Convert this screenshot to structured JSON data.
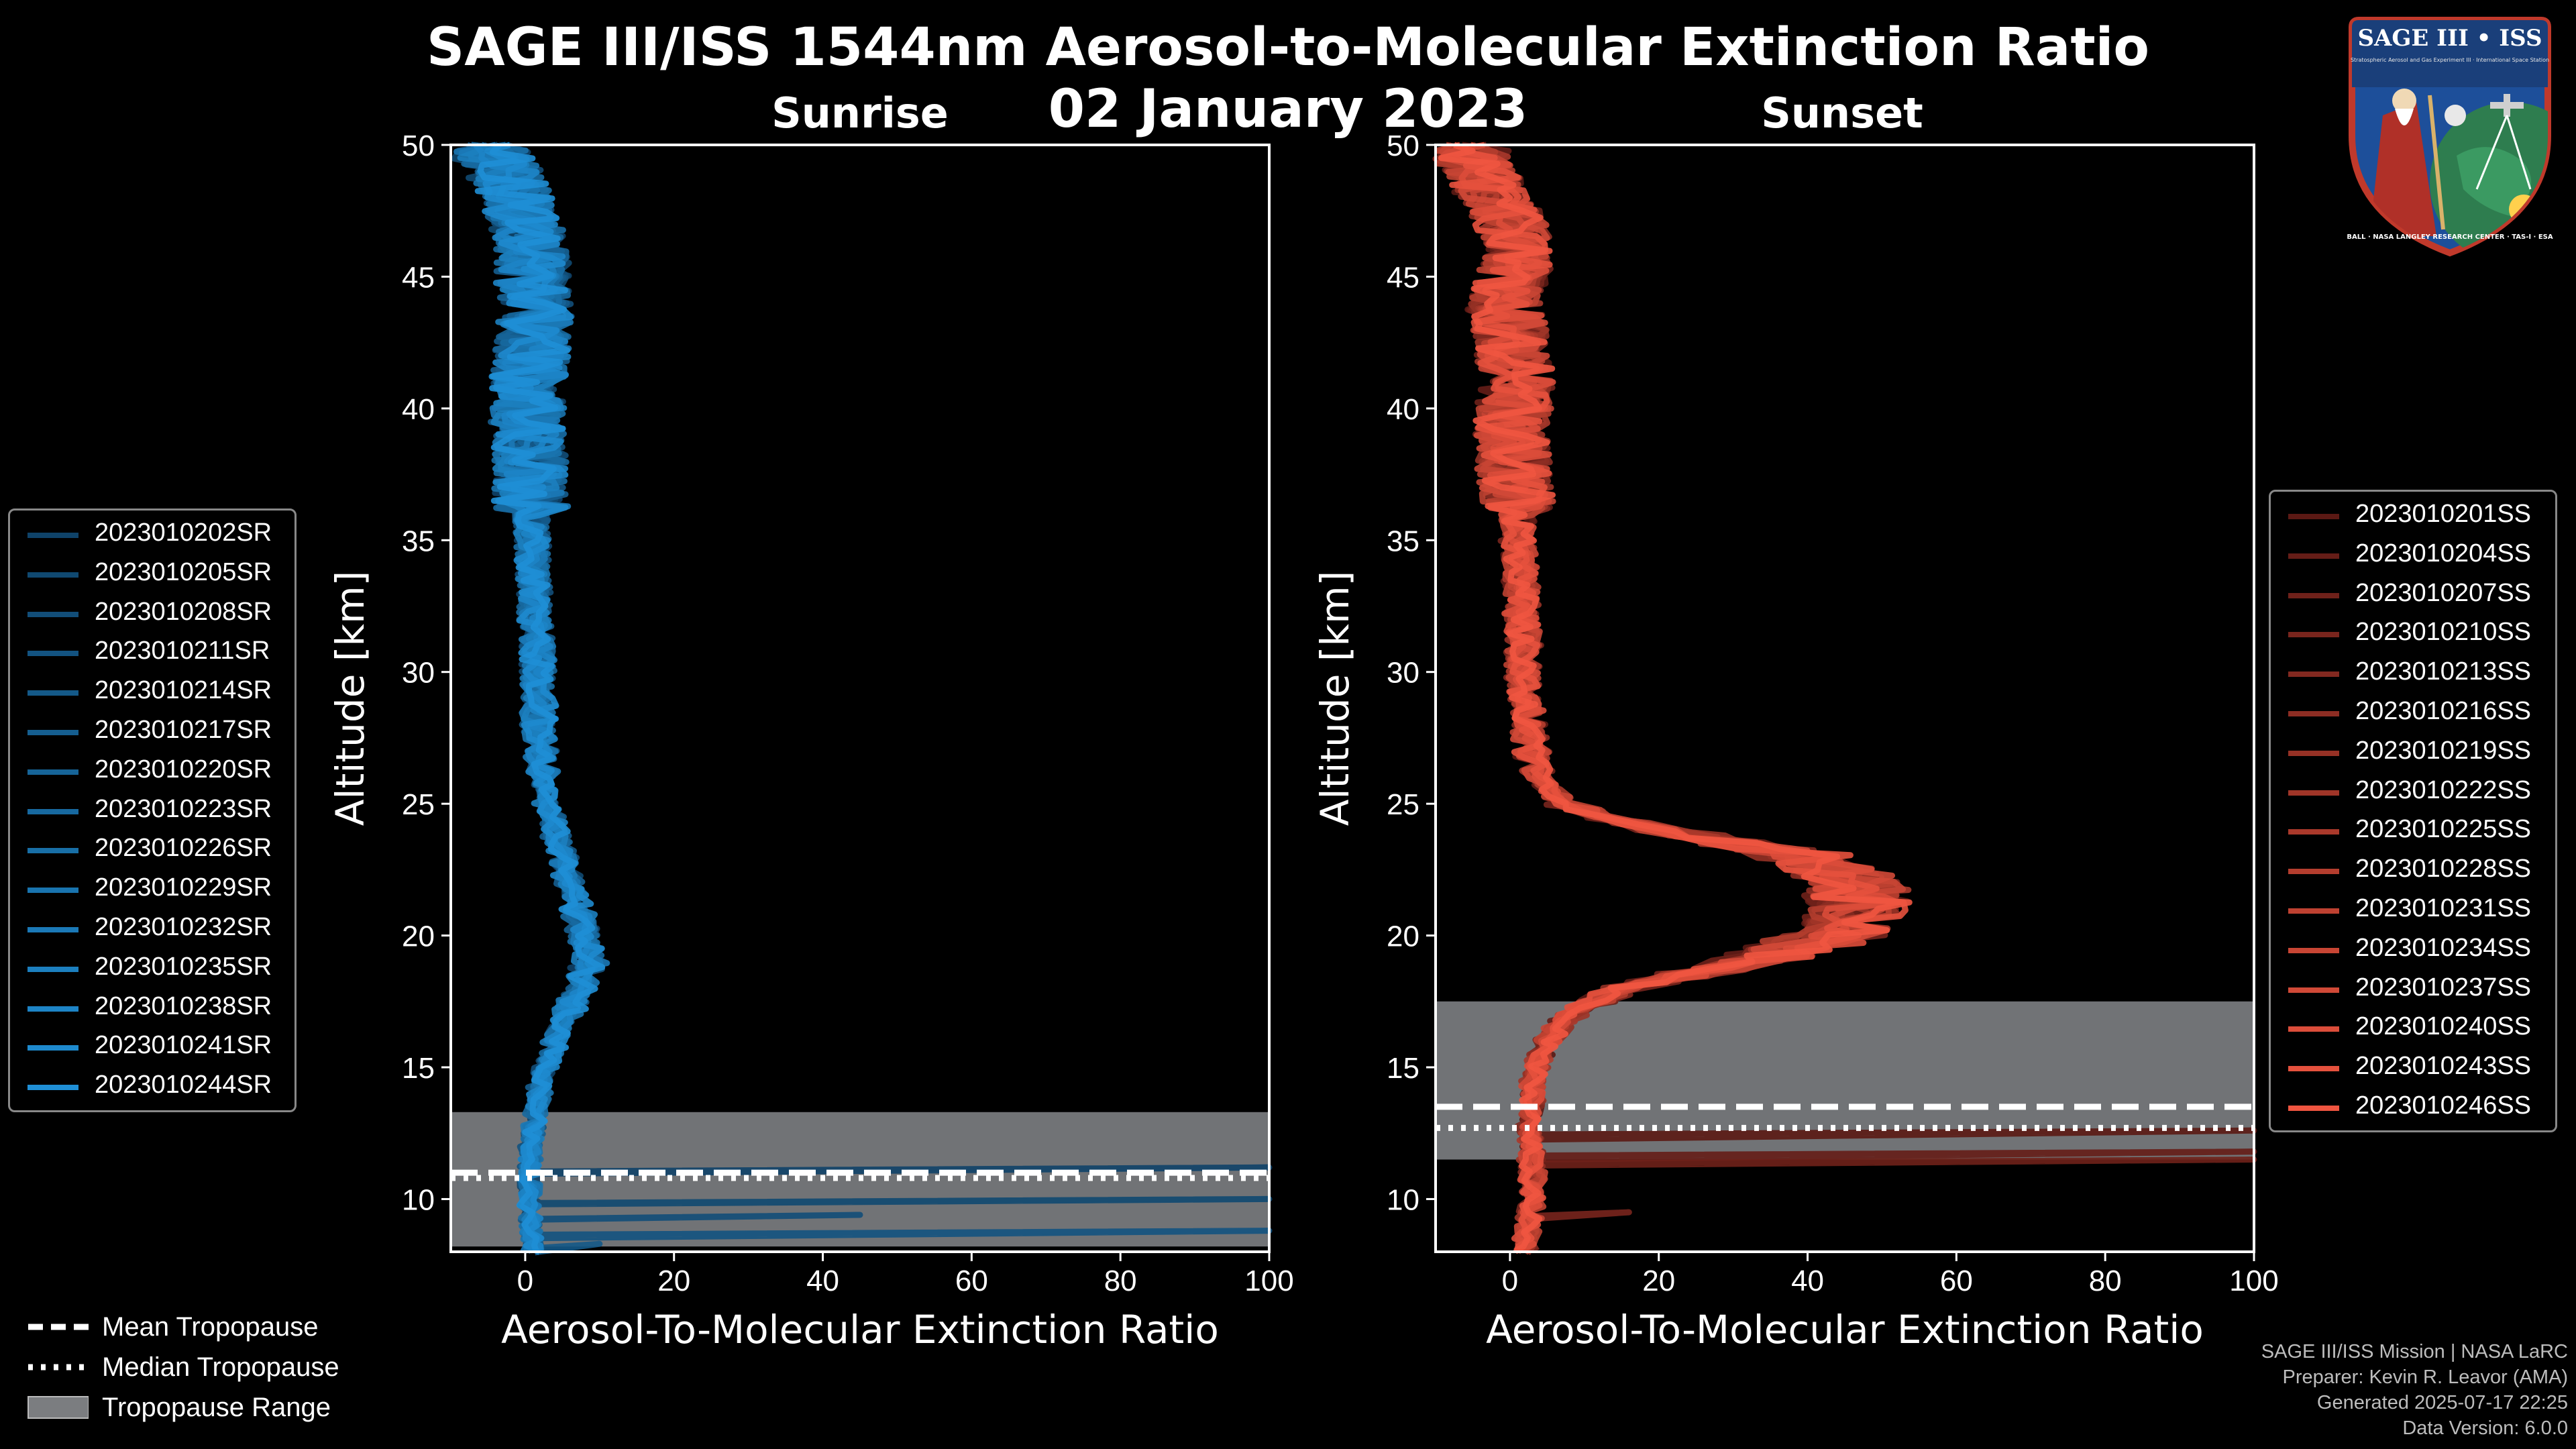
{
  "title": "SAGE III/ISS 1544nm Aerosol-to-Molecular Extinction Ratio",
  "date": "02 January 2023",
  "colors": {
    "sunrise": "#1f8fd6",
    "sunset": "#ef5540",
    "tropopause_band": "#7b7d80",
    "frame": "#ffffff"
  },
  "chart_data": [
    {
      "type": "line",
      "panel": "sunrise",
      "title": "Sunrise",
      "xlabel": "Aerosol-To-Molecular Extinction Ratio",
      "ylabel": "Altitude [km]",
      "xlim": [
        -10,
        100
      ],
      "ylim": [
        8,
        50
      ],
      "xticks": [
        0,
        20,
        40,
        60,
        80,
        100
      ],
      "yticks": [
        10,
        15,
        20,
        25,
        30,
        35,
        40,
        45,
        50
      ],
      "tropopause": {
        "mean": 11.0,
        "median": 10.8,
        "range": [
          8.2,
          13.3
        ]
      },
      "profile": {
        "altitude": [
          8,
          9,
          10,
          11,
          12,
          13,
          14,
          15,
          16,
          17,
          18,
          19,
          20,
          21,
          22,
          23,
          24,
          25,
          26,
          27,
          28,
          29,
          30,
          31,
          32,
          33,
          34,
          35,
          36,
          37,
          38,
          39,
          40,
          41,
          42,
          43,
          44,
          45,
          46,
          47,
          48,
          49,
          50
        ],
        "ratio": [
          1.0,
          0.8,
          0.6,
          0.6,
          0.8,
          1.3,
          1.8,
          2.8,
          4.0,
          5.5,
          7.5,
          8.5,
          8.0,
          7.0,
          6.0,
          5.0,
          4.0,
          3.0,
          2.5,
          2.0,
          1.8,
          1.8,
          1.6,
          1.6,
          1.4,
          1.2,
          1.2,
          1.0,
          0.8,
          0.6,
          0.6,
          0.4,
          0.3,
          0.4,
          0.8,
          1.2,
          1.5,
          1.0,
          0.8,
          0.0,
          -1.0,
          -3.0,
          -5.0
        ]
      },
      "series": [
        {
          "name": "2023010202SR"
        },
        {
          "name": "2023010205SR"
        },
        {
          "name": "2023010208SR"
        },
        {
          "name": "2023010211SR"
        },
        {
          "name": "2023010214SR"
        },
        {
          "name": "2023010217SR"
        },
        {
          "name": "2023010220SR"
        },
        {
          "name": "2023010223SR"
        },
        {
          "name": "2023010226SR"
        },
        {
          "name": "2023010229SR"
        },
        {
          "name": "2023010232SR"
        },
        {
          "name": "2023010235SR"
        },
        {
          "name": "2023010238SR"
        },
        {
          "name": "2023010241SR"
        },
        {
          "name": "2023010244SR"
        }
      ]
    },
    {
      "type": "line",
      "panel": "sunset",
      "title": "Sunset",
      "xlabel": "Aerosol-To-Molecular Extinction Ratio",
      "ylabel": "Altitude [km]",
      "xlim": [
        -10,
        100
      ],
      "ylim": [
        8,
        50
      ],
      "xticks": [
        0,
        20,
        40,
        60,
        80,
        100
      ],
      "yticks": [
        10,
        15,
        20,
        25,
        30,
        35,
        40,
        45,
        50
      ],
      "tropopause": {
        "mean": 13.5,
        "median": 12.7,
        "range": [
          11.5,
          17.5
        ]
      },
      "profile": {
        "altitude": [
          8,
          9,
          10,
          11,
          12,
          13,
          14,
          15,
          16,
          17,
          18,
          19,
          20,
          21,
          22,
          23,
          24,
          25,
          26,
          27,
          28,
          29,
          30,
          31,
          32,
          33,
          34,
          35,
          36,
          37,
          38,
          39,
          40,
          41,
          42,
          43,
          44,
          45,
          46,
          47,
          48,
          49,
          50
        ],
        "ratio": [
          2.0,
          2.5,
          3.0,
          3.0,
          3.0,
          2.5,
          3.0,
          3.5,
          5.0,
          8.0,
          15.0,
          32.0,
          44.0,
          47.0,
          47.0,
          40.0,
          20.0,
          7.0,
          4.0,
          3.0,
          2.5,
          2.0,
          1.8,
          1.8,
          1.6,
          1.5,
          1.5,
          1.0,
          1.0,
          0.8,
          0.5,
          0.3,
          0.5,
          0.8,
          0.5,
          0.0,
          -1.0,
          0.5,
          1.0,
          0.0,
          -2.0,
          -4.0,
          -6.0
        ]
      },
      "series": [
        {
          "name": "2023010201SS"
        },
        {
          "name": "2023010204SS"
        },
        {
          "name": "2023010207SS"
        },
        {
          "name": "2023010210SS"
        },
        {
          "name": "2023010213SS"
        },
        {
          "name": "2023010216SS"
        },
        {
          "name": "2023010219SS"
        },
        {
          "name": "2023010222SS"
        },
        {
          "name": "2023010225SS"
        },
        {
          "name": "2023010228SS"
        },
        {
          "name": "2023010231SS"
        },
        {
          "name": "2023010234SS"
        },
        {
          "name": "2023010237SS"
        },
        {
          "name": "2023010240SS"
        },
        {
          "name": "2023010243SS"
        },
        {
          "name": "2023010246SS"
        }
      ]
    }
  ],
  "tropopause_legend": [
    "Mean Tropopause",
    "Median Tropopause",
    "Tropopause Range"
  ],
  "credits": [
    "SAGE III/ISS Mission | NASA LaRC",
    "Preparer: Kevin R. Leavor (AMA)",
    "Generated 2025-07-17 22:25",
    "Data Version: 6.0.0"
  ],
  "logo": {
    "text_top": "SAGE III • ISS",
    "text_sub": "Stratospheric Aerosol and Gas Experiment III · International Space Station",
    "text_ring": "BALL · NASA LANGLEY RESEARCH CENTER · TAS-I · ESA"
  }
}
